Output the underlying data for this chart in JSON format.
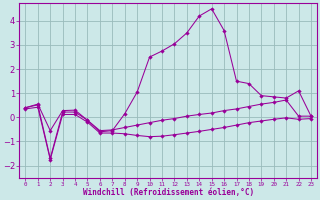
{
  "xlabel": "Windchill (Refroidissement éolien,°C)",
  "background_color": "#cce8e8",
  "grid_color": "#99bbbb",
  "line_color": "#990099",
  "ylim": [
    -2.5,
    4.75
  ],
  "xlim": [
    -0.5,
    23.5
  ],
  "yticks": [
    -2,
    -1,
    0,
    1,
    2,
    3,
    4
  ],
  "xticks": [
    0,
    1,
    2,
    3,
    4,
    5,
    6,
    7,
    8,
    9,
    10,
    11,
    12,
    13,
    14,
    15,
    16,
    17,
    18,
    19,
    20,
    21,
    22,
    23
  ],
  "s1_x": [
    0,
    1,
    2,
    3,
    4,
    5,
    6,
    7,
    8,
    9,
    10,
    11,
    12,
    13,
    14,
    15,
    16,
    17,
    18,
    19,
    20,
    21,
    22,
    23
  ],
  "s1_y": [
    0.4,
    0.55,
    -0.55,
    0.28,
    0.3,
    -0.12,
    -0.6,
    -0.55,
    0.15,
    1.05,
    2.5,
    2.75,
    3.05,
    3.5,
    4.2,
    4.5,
    3.6,
    1.5,
    1.4,
    0.9,
    0.85,
    0.8,
    1.1,
    0.05
  ],
  "s2_x": [
    0,
    1,
    2,
    3,
    4,
    5,
    6,
    7,
    8,
    9,
    10,
    11,
    12,
    13,
    14,
    15,
    16,
    17,
    18,
    19,
    20,
    21,
    22,
    23
  ],
  "s2_y": [
    0.4,
    0.52,
    -1.7,
    0.22,
    0.22,
    -0.12,
    -0.55,
    -0.52,
    -0.42,
    -0.32,
    -0.22,
    -0.12,
    -0.05,
    0.05,
    0.12,
    0.18,
    0.28,
    0.35,
    0.45,
    0.55,
    0.62,
    0.72,
    0.05,
    0.05
  ],
  "s3_x": [
    0,
    1,
    2,
    3,
    4,
    5,
    6,
    7,
    8,
    9,
    10,
    11,
    12,
    13,
    14,
    15,
    16,
    17,
    18,
    19,
    20,
    21,
    22,
    23
  ],
  "s3_y": [
    0.35,
    0.42,
    -1.75,
    0.12,
    0.12,
    -0.2,
    -0.65,
    -0.65,
    -0.68,
    -0.75,
    -0.8,
    -0.78,
    -0.72,
    -0.65,
    -0.58,
    -0.5,
    -0.42,
    -0.32,
    -0.22,
    -0.15,
    -0.08,
    -0.02,
    -0.08,
    -0.05
  ]
}
